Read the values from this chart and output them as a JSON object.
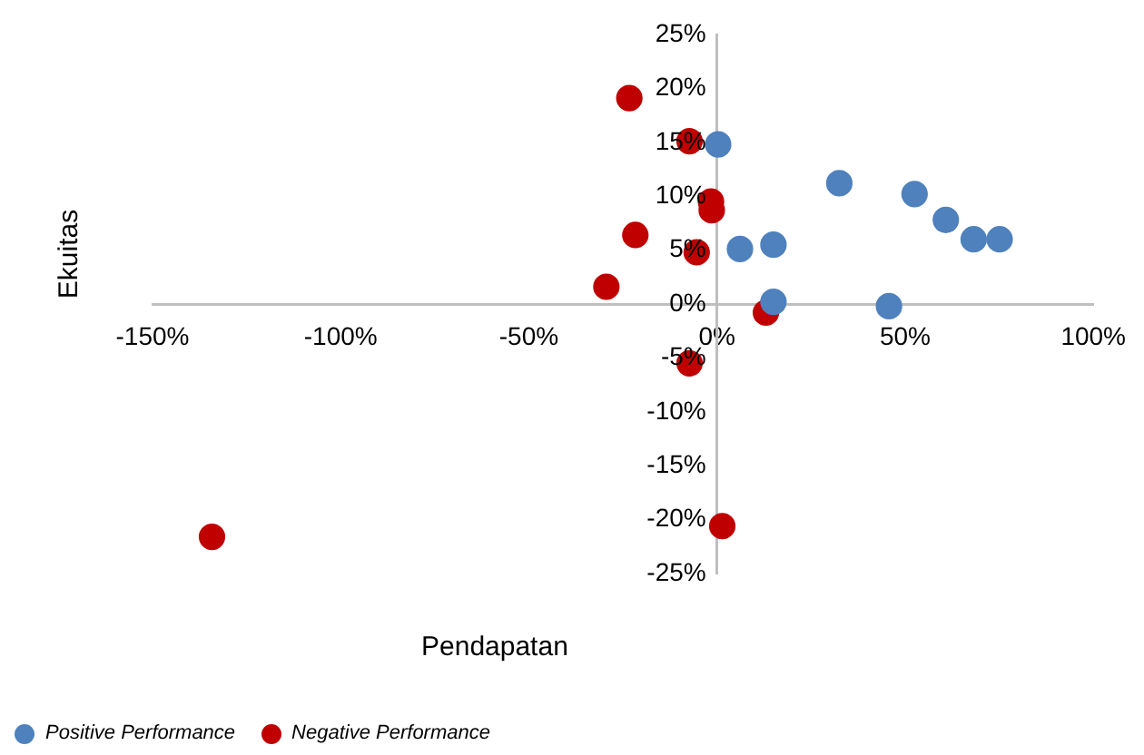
{
  "chart_data": {
    "type": "scatter",
    "xlabel": "Pendapatan",
    "ylabel": "Ekuitas",
    "marker": "circle",
    "legend": "bottom left",
    "xlim": [
      -150,
      100
    ],
    "xticks": [
      {
        "value": -150,
        "label": "-150%"
      },
      {
        "value": -100,
        "label": "-100%"
      },
      {
        "value": -50,
        "label": "-50%"
      },
      {
        "value": 0,
        "label": "0%"
      },
      {
        "value": 50,
        "label": "50%"
      },
      {
        "value": 100,
        "label": "100%"
      }
    ],
    "ylim": [
      -25,
      25
    ],
    "yticks": [
      {
        "value": -25,
        "label": "-25%"
      },
      {
        "value": -20,
        "label": "-20%"
      },
      {
        "value": -15,
        "label": "-15%"
      },
      {
        "value": -10,
        "label": "-10%"
      },
      {
        "value": -5,
        "label": "-5%"
      },
      {
        "value": 0,
        "label": "0%"
      },
      {
        "value": 5,
        "label": "5%"
      },
      {
        "value": 10,
        "label": "10%"
      },
      {
        "value": 15,
        "label": "15%"
      },
      {
        "value": 20,
        "label": "20%"
      },
      {
        "value": 25,
        "label": "25%"
      }
    ],
    "series": [
      {
        "name": "Positive Performance",
        "color": "#4f81bd",
        "x": [
          0.3,
          6.1,
          15.0,
          15.0,
          32.5,
          45.7,
          52.5,
          60.8,
          68.2,
          75.1
        ],
        "values": [
          14.8,
          5.1,
          5.5,
          0.2,
          11.2,
          -0.2,
          10.2,
          7.8,
          6.0,
          6.0
        ]
      },
      {
        "name": "Negative Performance",
        "color": "#c00000",
        "x": [
          -23.3,
          -7.3,
          -1.6,
          -1.4,
          -21.7,
          -5.4,
          -29.4,
          13.0,
          -7.3,
          1.4,
          -134.2
        ],
        "values": [
          19.1,
          15.1,
          9.5,
          8.7,
          6.4,
          4.8,
          1.6,
          -0.8,
          -5.5,
          -20.6,
          -21.6
        ]
      }
    ]
  }
}
